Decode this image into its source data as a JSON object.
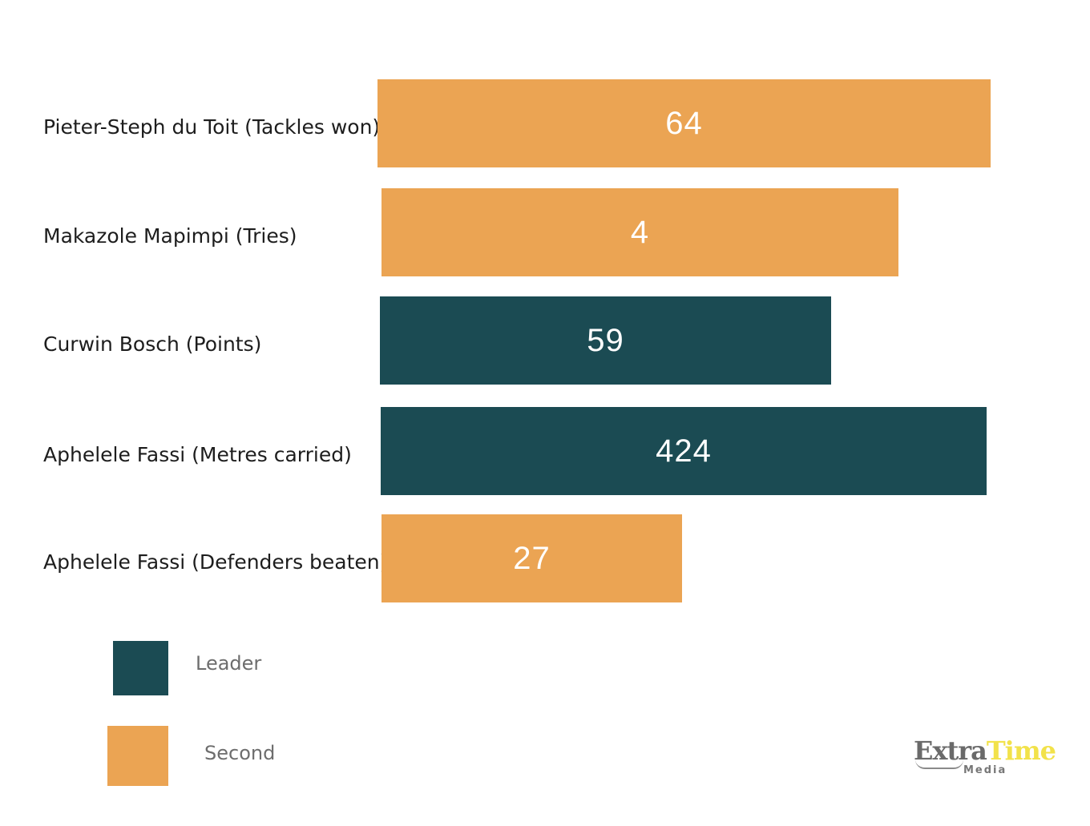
{
  "chart_data": {
    "type": "bar",
    "orientation": "horizontal",
    "categories": [
      "Pieter-Steph du Toit (Tackles won)",
      "Makazole Mapimpi (Tries)",
      "Curwin Bosch (Points)",
      "Aphelele Fassi (Metres carried)",
      "Aphelele Fassi (Defenders beaten)"
    ],
    "values": [
      64,
      4,
      59,
      424,
      27
    ],
    "value_labels": [
      "64",
      "4",
      "59",
      "424",
      "27"
    ],
    "bar_groups": [
      "Second",
      "Second",
      "Leader",
      "Leader",
      "Second"
    ],
    "legend": {
      "placement": "bottom-left",
      "entries": [
        {
          "name": "Leader",
          "color": "#1b4b53"
        },
        {
          "name": "Second",
          "color": "#eba453"
        }
      ]
    },
    "colors": {
      "Leader": "#1b4b53",
      "Second": "#eba453"
    },
    "grid": false
  },
  "logo": {
    "word_primary": "Extra",
    "word_accent": "Time",
    "subtitle": "Media"
  }
}
